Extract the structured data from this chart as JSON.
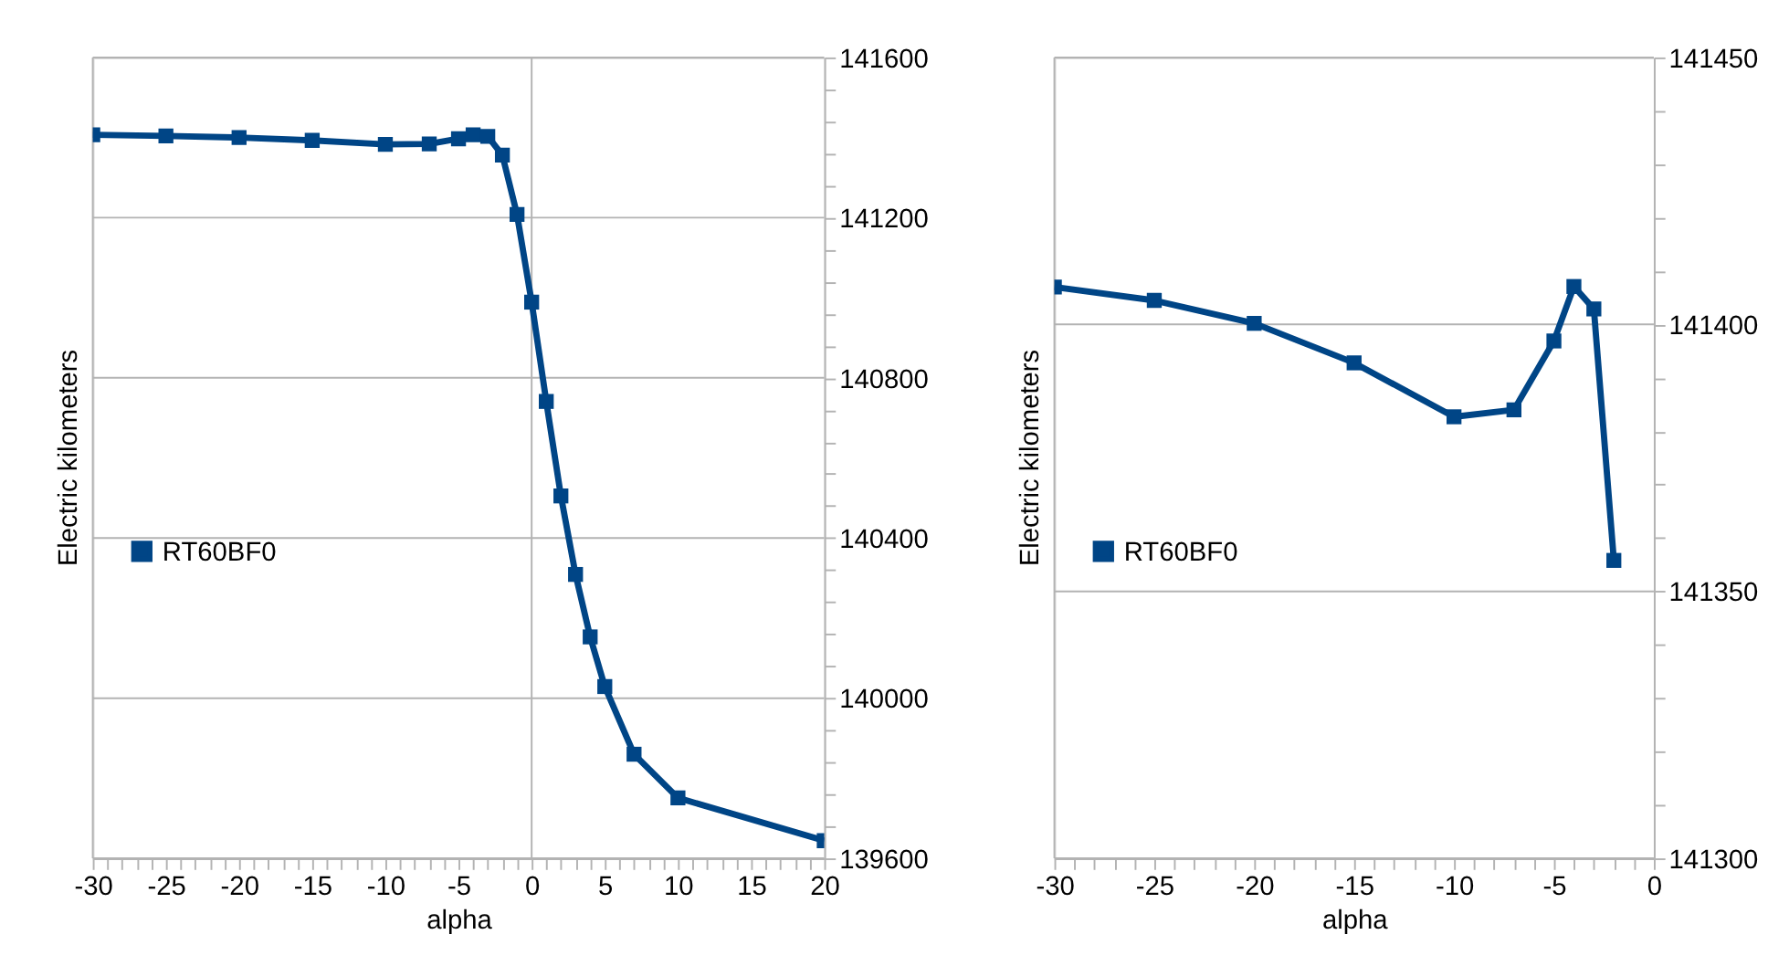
{
  "chart_data": [
    {
      "type": "line",
      "xlabel": "alpha",
      "ylabel": "Electric kilometers",
      "x": [
        -30,
        -25,
        -20,
        -15,
        -10,
        -7,
        -5,
        -4,
        -3,
        -2,
        -1,
        0,
        1,
        2,
        3,
        4,
        5,
        7,
        10,
        20
      ],
      "series": [
        {
          "name": "RT60BF0",
          "color": "#004586",
          "values": [
            141407,
            141404,
            141400,
            141393,
            141383,
            141384,
            141397,
            141407,
            141403,
            141356,
            141208,
            140989,
            140741,
            140505,
            140309,
            140153,
            140029,
            139860,
            139751,
            139644
          ]
        }
      ],
      "xlim": [
        -30,
        20
      ],
      "ylim": [
        139600,
        141600
      ],
      "xticks": [
        -30,
        {
          "value": -29,
          "label": null
        },
        {
          "value": -28,
          "label": null
        },
        {
          "value": -27,
          "label": null
        },
        {
          "value": -26,
          "label": null
        },
        -25,
        {
          "value": -24,
          "label": null
        },
        {
          "value": -23,
          "label": null
        },
        {
          "value": -22,
          "label": null
        },
        {
          "value": -21,
          "label": null
        },
        -20,
        {
          "value": -19,
          "label": null
        },
        {
          "value": -18,
          "label": null
        },
        {
          "value": -17,
          "label": null
        },
        {
          "value": -16,
          "label": null
        },
        -15,
        {
          "value": -14,
          "label": null
        },
        {
          "value": -13,
          "label": null
        },
        {
          "value": -12,
          "label": null
        },
        {
          "value": -11,
          "label": null
        },
        -10,
        {
          "value": -9,
          "label": null
        },
        {
          "value": -8,
          "label": null
        },
        {
          "value": -7,
          "label": null
        },
        {
          "value": -6,
          "label": null
        },
        -5,
        {
          "value": -4,
          "label": null
        },
        {
          "value": -3,
          "label": null
        },
        {
          "value": -2,
          "label": null
        },
        {
          "value": -1,
          "label": null
        },
        0,
        {
          "value": 1,
          "label": null
        },
        {
          "value": 2,
          "label": null
        },
        {
          "value": 3,
          "label": null
        },
        {
          "value": 4,
          "label": null
        },
        5,
        {
          "value": 6,
          "label": null
        },
        {
          "value": 7,
          "label": null
        },
        {
          "value": 8,
          "label": null
        },
        {
          "value": 9,
          "label": null
        },
        10,
        {
          "value": 11,
          "label": null
        },
        {
          "value": 12,
          "label": null
        },
        {
          "value": 13,
          "label": null
        },
        {
          "value": 14,
          "label": null
        },
        15,
        {
          "value": 16,
          "label": null
        },
        {
          "value": 17,
          "label": null
        },
        {
          "value": 18,
          "label": null
        },
        {
          "value": 19,
          "label": null
        },
        20
      ],
      "yticks": [
        139600,
        {
          "value": 139680,
          "label": null
        },
        {
          "value": 139760,
          "label": null
        },
        {
          "value": 139840,
          "label": null
        },
        {
          "value": 139920,
          "label": null
        },
        140000,
        {
          "value": 140080,
          "label": null
        },
        {
          "value": 140160,
          "label": null
        },
        {
          "value": 140240,
          "label": null
        },
        {
          "value": 140320,
          "label": null
        },
        140400,
        {
          "value": 140480,
          "label": null
        },
        {
          "value": 140560,
          "label": null
        },
        {
          "value": 140640,
          "label": null
        },
        {
          "value": 140720,
          "label": null
        },
        140800,
        {
          "value": 140880,
          "label": null
        },
        {
          "value": 140960,
          "label": null
        },
        {
          "value": 141040,
          "label": null
        },
        {
          "value": 141120,
          "label": null
        },
        141200,
        {
          "value": 141280,
          "label": null
        },
        {
          "value": 141360,
          "label": null
        },
        {
          "value": 141440,
          "label": null
        },
        {
          "value": 141520,
          "label": null
        },
        141600
      ],
      "ref_lines": [
        {
          "axis": "x",
          "value": 0,
          "color": "#b3b3b3"
        }
      ],
      "grid": "y",
      "legend": "left",
      "marker": "square",
      "line_style": "solid"
    },
    {
      "type": "line",
      "xlabel": "alpha",
      "ylabel": "Electric kilometers",
      "x": [
        -30,
        -25,
        -20,
        -15,
        -10,
        -7,
        -5,
        -4,
        -3,
        -2
      ],
      "series": [
        {
          "name": "RT60BF0",
          "color": "#004586",
          "values": [
            141407,
            141404.5,
            141400.2,
            141392.8,
            141382.7,
            141384,
            141396.9,
            141407.1,
            141402.9,
            141355.8
          ]
        }
      ],
      "xlim": [
        -30,
        0
      ],
      "ylim": [
        141300,
        141450
      ],
      "xticks": [
        -30,
        {
          "value": -29,
          "label": null
        },
        {
          "value": -28,
          "label": null
        },
        {
          "value": -27,
          "label": null
        },
        {
          "value": -26,
          "label": null
        },
        -25,
        {
          "value": -24,
          "label": null
        },
        {
          "value": -23,
          "label": null
        },
        {
          "value": -22,
          "label": null
        },
        {
          "value": -21,
          "label": null
        },
        -20,
        {
          "value": -19,
          "label": null
        },
        {
          "value": -18,
          "label": null
        },
        {
          "value": -17,
          "label": null
        },
        {
          "value": -16,
          "label": null
        },
        -15,
        {
          "value": -14,
          "label": null
        },
        {
          "value": -13,
          "label": null
        },
        {
          "value": -12,
          "label": null
        },
        {
          "value": -11,
          "label": null
        },
        -10,
        {
          "value": -9,
          "label": null
        },
        {
          "value": -8,
          "label": null
        },
        {
          "value": -7,
          "label": null
        },
        {
          "value": -6,
          "label": null
        },
        -5,
        {
          "value": -4,
          "label": null
        },
        {
          "value": -3,
          "label": null
        },
        {
          "value": -2,
          "label": null
        },
        {
          "value": -1,
          "label": null
        },
        0
      ],
      "yticks": [
        141300,
        {
          "value": 141310,
          "label": null
        },
        {
          "value": 141320,
          "label": null
        },
        {
          "value": 141330,
          "label": null
        },
        {
          "value": 141340,
          "label": null
        },
        141350,
        {
          "value": 141360,
          "label": null
        },
        {
          "value": 141370,
          "label": null
        },
        {
          "value": 141380,
          "label": null
        },
        {
          "value": 141390,
          "label": null
        },
        141400,
        {
          "value": 141410,
          "label": null
        },
        {
          "value": 141420,
          "label": null
        },
        {
          "value": 141430,
          "label": null
        },
        {
          "value": 141440,
          "label": null
        },
        141450
      ],
      "grid": "y",
      "legend": "left",
      "marker": "square",
      "line_style": "solid"
    }
  ]
}
